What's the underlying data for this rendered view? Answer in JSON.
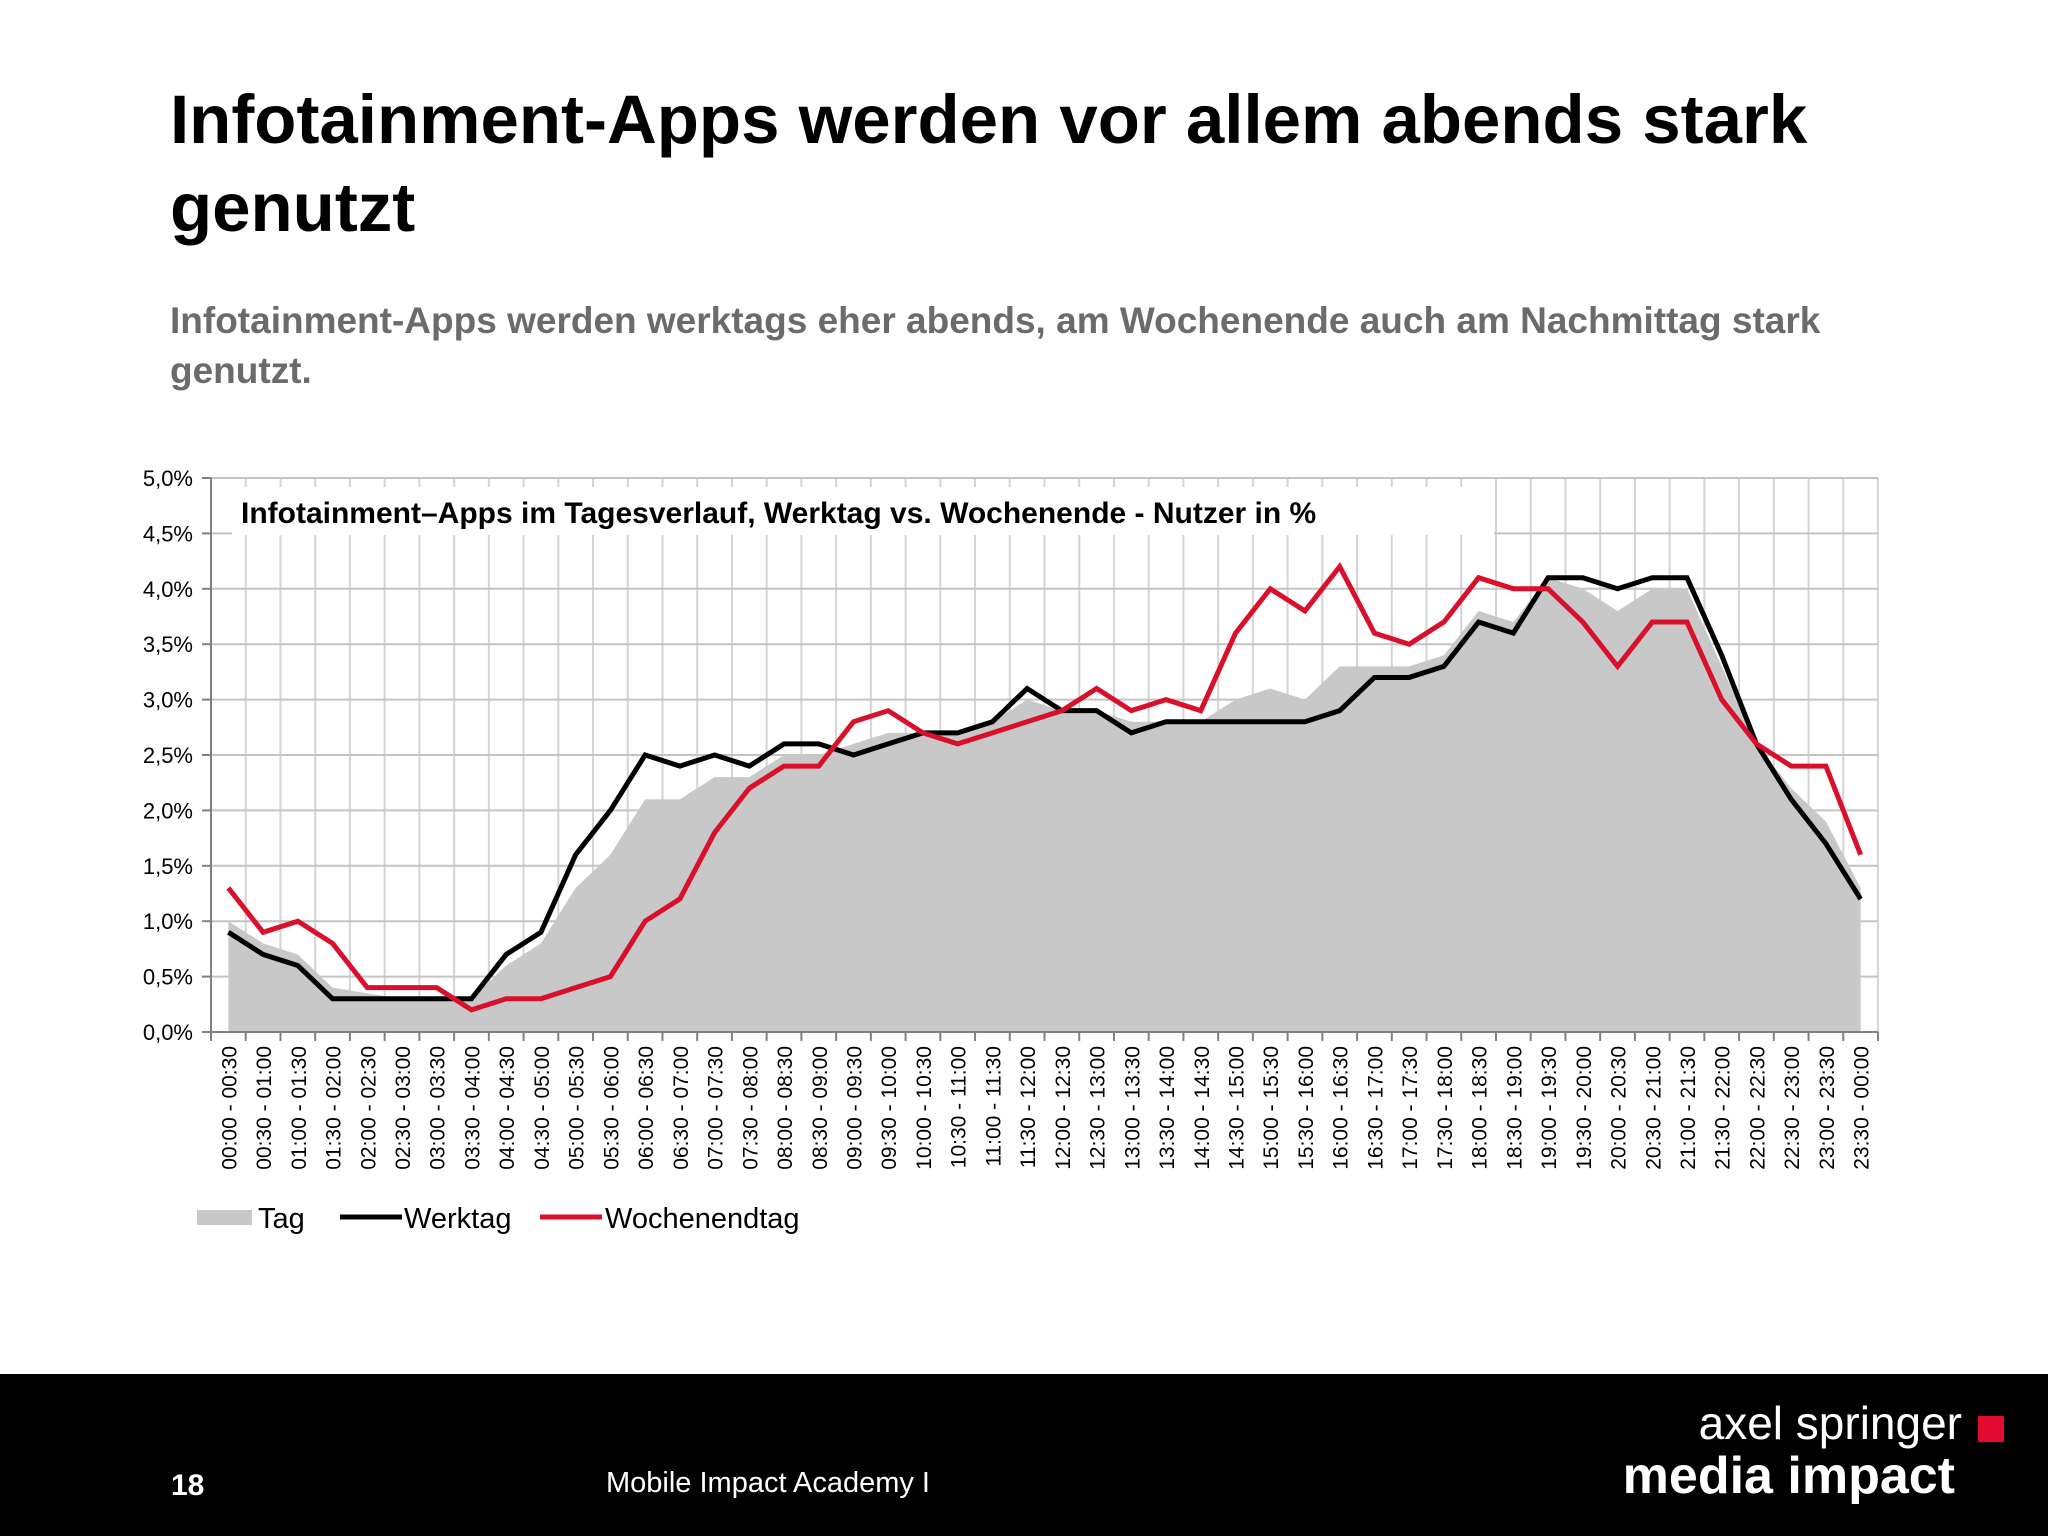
{
  "slide": {
    "title": "Infotainment-Apps werden vor allem abends stark genutzt",
    "subtitle": "Infotainment-Apps werden werktags eher abends, am Wochenende auch am Nachmittag stark genutzt."
  },
  "footer": {
    "page_number": "18",
    "text": "Mobile Impact Academy I",
    "logo_line1": "axel springer",
    "logo_line2": "media impact"
  },
  "colors": {
    "accent_red": "#d8102c",
    "werktag": "#000000",
    "tag_area": "#c8c8c8",
    "footer_bg": "#000000",
    "logo_square": "#e30b2f"
  },
  "chart_data": {
    "type": "line",
    "title": "Infotainment–Apps im Tagesverlauf, Werktag vs. Wochenende - Nutzer in %",
    "xlabel": "",
    "ylabel": "",
    "ylim": [
      0,
      5
    ],
    "ytick_labels": [
      "0,0%",
      "0,5%",
      "1,0%",
      "1,5%",
      "2,0%",
      "2,5%",
      "3,0%",
      "3,5%",
      "4,0%",
      "4,5%",
      "5,0%"
    ],
    "grid": true,
    "legend": "bottom-left",
    "categories": [
      "00:00 - 00:30",
      "00:30 - 01:00",
      "01:00 - 01:30",
      "01:30 - 02:00",
      "02:00 - 02:30",
      "02:30 - 03:00",
      "03:00 - 03:30",
      "03:30 - 04:00",
      "04:00 - 04:30",
      "04:30 - 05:00",
      "05:00 - 05:30",
      "05:30 - 06:00",
      "06:00 - 06:30",
      "06:30 - 07:00",
      "07:00 - 07:30",
      "07:30 - 08:00",
      "08:00 - 08:30",
      "08:30 - 09:00",
      "09:00 - 09:30",
      "09:30 - 10:00",
      "10:00 - 10:30",
      "10:30 - 11:00",
      "11:00 - 11:30",
      "11:30 - 12:00",
      "12:00 - 12:30",
      "12:30 - 13:00",
      "13:00 - 13:30",
      "13:30 - 14:00",
      "14:00 - 14:30",
      "14:30 - 15:00",
      "15:00 - 15:30",
      "15:30 - 16:00",
      "16:00 - 16:30",
      "16:30 - 17:00",
      "17:00 - 17:30",
      "17:30 - 18:00",
      "18:00 - 18:30",
      "18:30 - 19:00",
      "19:00 - 19:30",
      "19:30 - 20:00",
      "20:00 - 20:30",
      "20:30 - 21:00",
      "21:00 - 21:30",
      "21:30 - 22:00",
      "22:00 - 22:30",
      "22:30 - 23:00",
      "23:00 - 23:30",
      "23:30 - 00:00"
    ],
    "series": [
      {
        "name": "Tag",
        "kind": "area",
        "color": "#c8c8c8",
        "values": [
          1.0,
          0.8,
          0.7,
          0.4,
          0.35,
          0.3,
          0.3,
          0.3,
          0.6,
          0.8,
          1.3,
          1.6,
          2.1,
          2.1,
          2.3,
          2.3,
          2.5,
          2.5,
          2.6,
          2.7,
          2.7,
          2.7,
          2.8,
          3.0,
          2.9,
          2.9,
          2.8,
          2.8,
          2.8,
          3.0,
          3.1,
          3.0,
          3.3,
          3.3,
          3.3,
          3.4,
          3.8,
          3.7,
          4.1,
          4.0,
          3.8,
          4.0,
          4.0,
          3.3,
          2.6,
          2.2,
          1.9,
          1.3
        ]
      },
      {
        "name": "Werktag",
        "kind": "line",
        "color": "#000000",
        "values": [
          0.9,
          0.7,
          0.6,
          0.3,
          0.3,
          0.3,
          0.3,
          0.3,
          0.7,
          0.9,
          1.6,
          2.0,
          2.5,
          2.4,
          2.5,
          2.4,
          2.6,
          2.6,
          2.5,
          2.6,
          2.7,
          2.7,
          2.8,
          3.1,
          2.9,
          2.9,
          2.7,
          2.8,
          2.8,
          2.8,
          2.8,
          2.8,
          2.9,
          3.2,
          3.2,
          3.3,
          3.7,
          3.6,
          4.1,
          4.1,
          4.0,
          4.1,
          4.1,
          3.4,
          2.6,
          2.1,
          1.7,
          1.2
        ]
      },
      {
        "name": "Wochenendtag",
        "kind": "line",
        "color": "#d8102c",
        "values": [
          1.3,
          0.9,
          1.0,
          0.8,
          0.4,
          0.4,
          0.4,
          0.2,
          0.3,
          0.3,
          0.4,
          0.5,
          1.0,
          1.2,
          1.8,
          2.2,
          2.4,
          2.4,
          2.8,
          2.9,
          2.7,
          2.6,
          2.7,
          2.8,
          2.9,
          3.1,
          2.9,
          3.0,
          2.9,
          3.6,
          4.0,
          3.8,
          4.2,
          3.6,
          3.5,
          3.7,
          4.1,
          4.0,
          4.0,
          3.7,
          3.3,
          3.7,
          3.7,
          3.0,
          2.6,
          2.4,
          2.4,
          1.6
        ]
      }
    ]
  }
}
